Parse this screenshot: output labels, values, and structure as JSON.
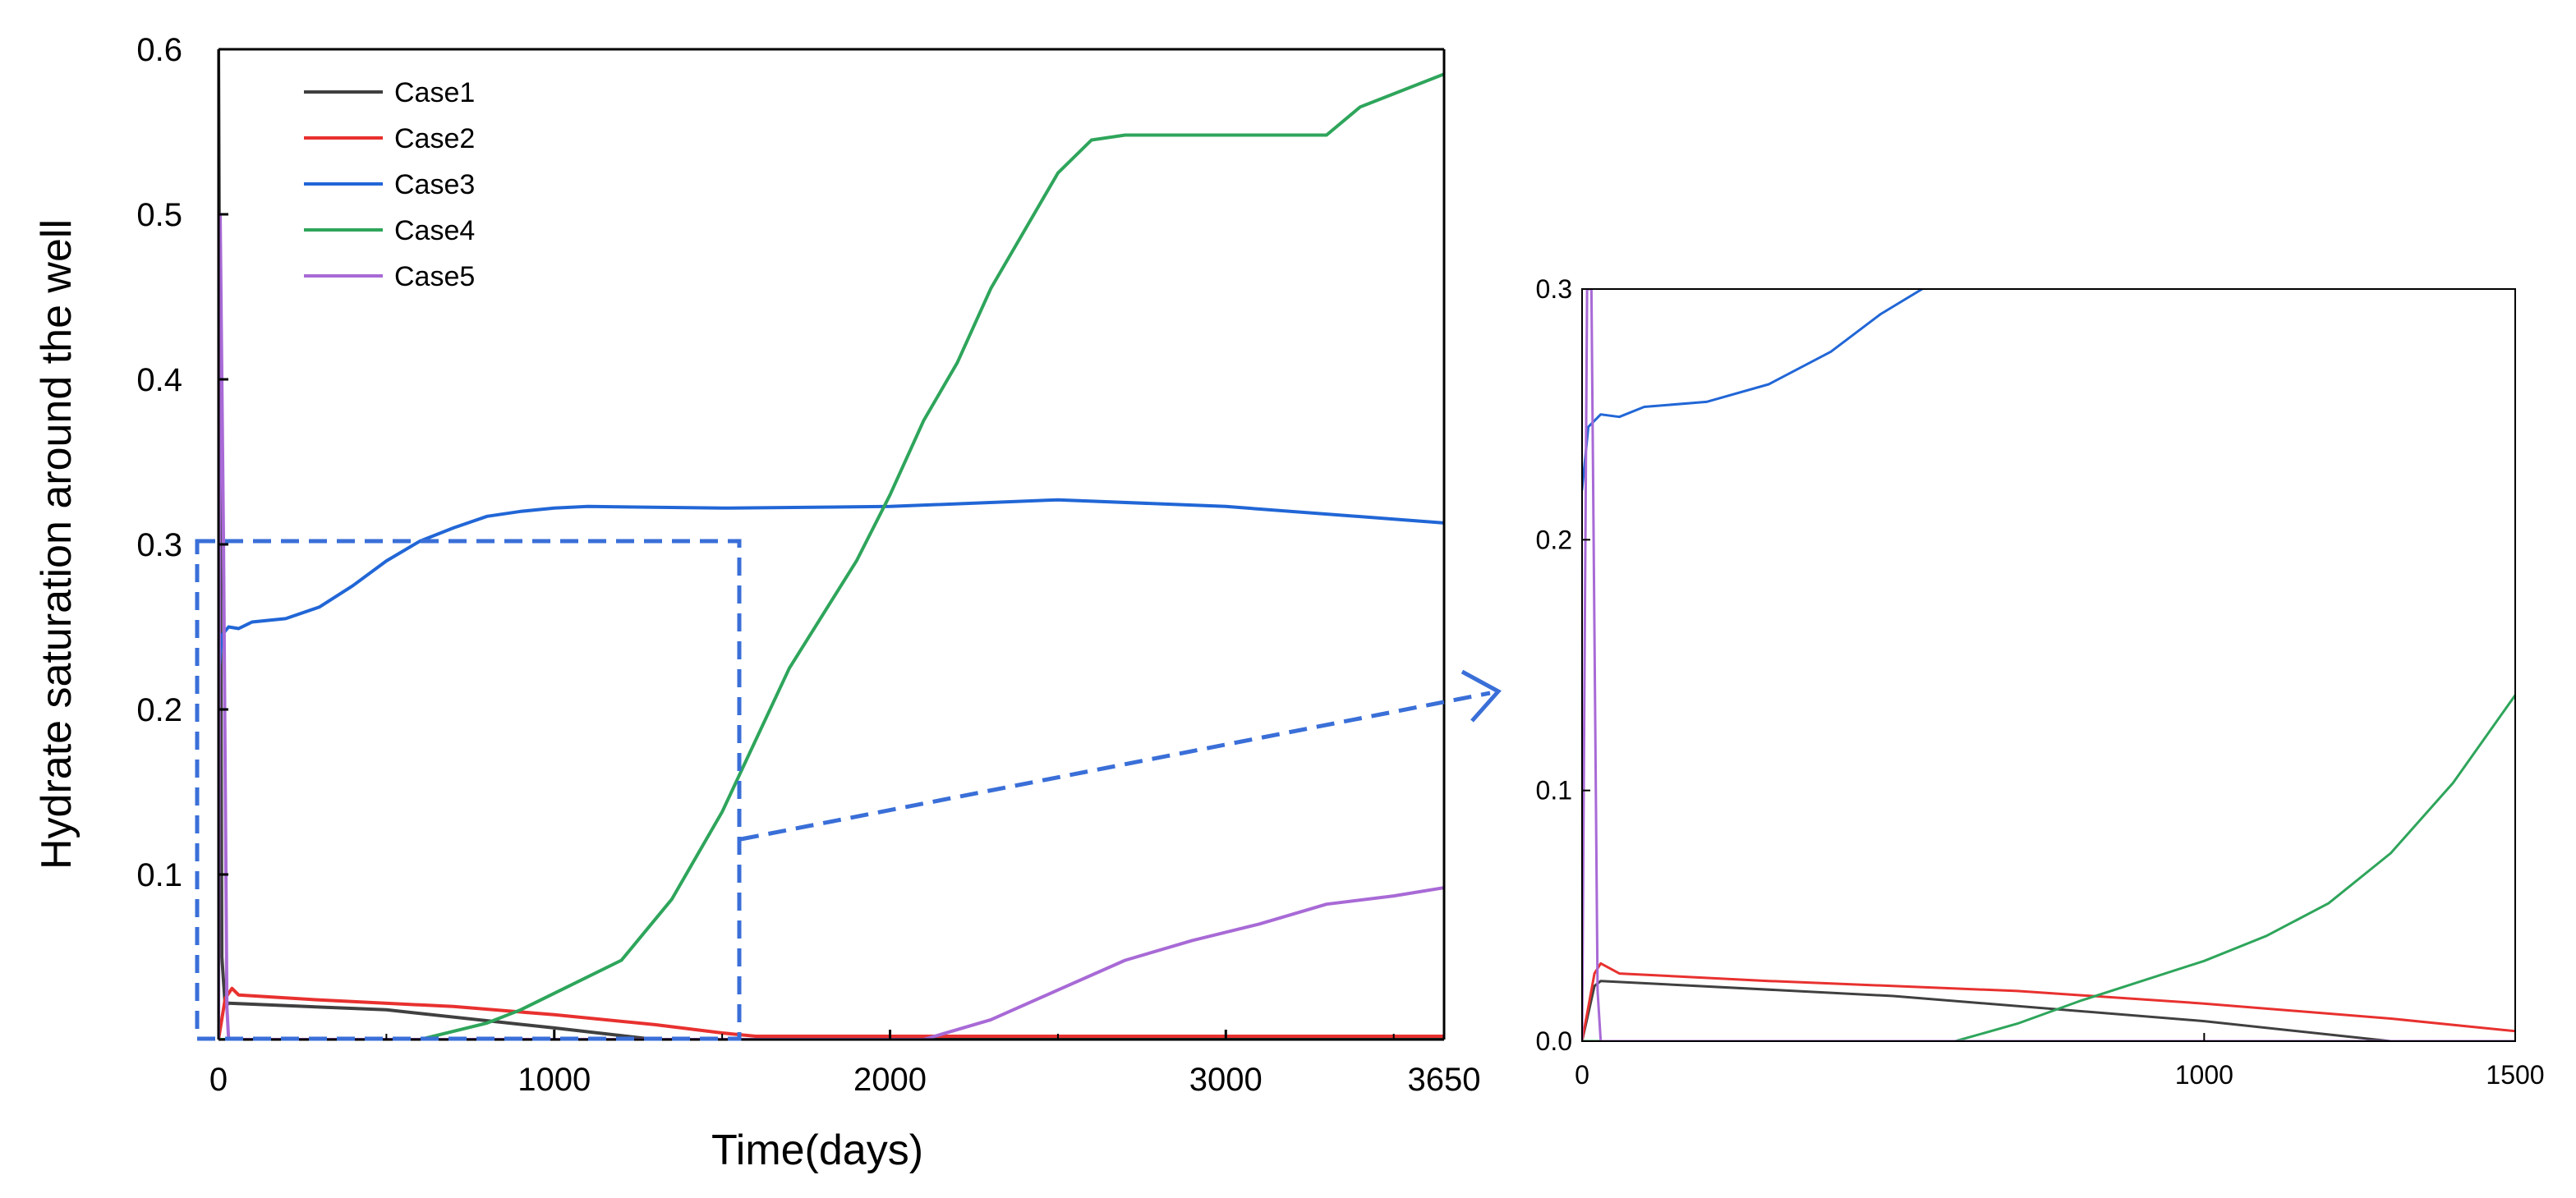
{
  "chart_data": [
    {
      "type": "line",
      "xlabel": "Time(days)",
      "ylabel": "Hydrate saturation around the well",
      "xlim": [
        0,
        3650
      ],
      "ylim": [
        0,
        0.6
      ],
      "x_ticks": [
        "0",
        "1000",
        "2000",
        "3000",
        "3650"
      ],
      "y_ticks": [
        "0.1",
        "0.2",
        "0.3",
        "0.4",
        "0.5",
        "0.6"
      ],
      "legend_position": "top-left",
      "series": [
        {
          "name": "Case1",
          "color": "#404040",
          "x": [
            0,
            5,
            10,
            20,
            30,
            500,
            1000,
            1300,
            3650
          ],
          "y": [
            0.6,
            0.35,
            0.05,
            0.02,
            0.022,
            0.018,
            0.007,
            0.0,
            0.0
          ]
        },
        {
          "name": "Case2",
          "color": "#e8312f",
          "x": [
            0,
            20,
            40,
            60,
            300,
            700,
            1000,
            1300,
            1500,
            1600,
            3650
          ],
          "y": [
            0.0,
            0.025,
            0.031,
            0.027,
            0.024,
            0.02,
            0.015,
            0.009,
            0.004,
            0.002,
            0.002
          ]
        },
        {
          "name": "Case3",
          "color": "#2166d6",
          "x": [
            0,
            10,
            30,
            60,
            100,
            200,
            300,
            400,
            500,
            600,
            700,
            800,
            900,
            1000,
            1100,
            1500,
            2000,
            2500,
            3000,
            3650
          ],
          "y": [
            0.22,
            0.245,
            0.25,
            0.249,
            0.253,
            0.255,
            0.262,
            0.275,
            0.29,
            0.302,
            0.31,
            0.317,
            0.32,
            0.322,
            0.323,
            0.322,
            0.323,
            0.327,
            0.323,
            0.313
          ]
        },
        {
          "name": "Case4",
          "color": "#2ea55b",
          "x": [
            0,
            600,
            800,
            900,
            1000,
            1200,
            1350,
            1500,
            1700,
            1900,
            2000,
            2100,
            2200,
            2300,
            2400,
            2500,
            2600,
            2700,
            2900,
            3100,
            3300,
            3400,
            3650
          ],
          "y": [
            0.0,
            0.0,
            0.01,
            0.018,
            0.028,
            0.048,
            0.085,
            0.138,
            0.225,
            0.29,
            0.33,
            0.375,
            0.41,
            0.455,
            0.49,
            0.525,
            0.545,
            0.548,
            0.548,
            0.548,
            0.548,
            0.565,
            0.585
          ]
        },
        {
          "name": "Case5",
          "color": "#a86ad6",
          "x": [
            0,
            5,
            15,
            25,
            30,
            2100,
            2300,
            2500,
            2700,
            2900,
            3100,
            3300,
            3500,
            3650
          ],
          "y": [
            0.0,
            0.5,
            0.3,
            0.02,
            0.0,
            0.0,
            0.012,
            0.03,
            0.048,
            0.06,
            0.07,
            0.082,
            0.087,
            0.092
          ]
        }
      ]
    },
    {
      "type": "line",
      "xlim": [
        0,
        1500
      ],
      "ylim": [
        0,
        0.3
      ],
      "x_ticks": [
        "0",
        "1000",
        "1500"
      ],
      "y_ticks": [
        "0.0",
        "0.1",
        "0.2",
        "0.3"
      ],
      "series": [
        {
          "name": "Case1",
          "color": "#404040",
          "x": [
            0,
            20,
            30,
            500,
            1000,
            1300,
            1500
          ],
          "y": [
            0.0,
            0.022,
            0.024,
            0.018,
            0.008,
            0.0,
            0.0
          ]
        },
        {
          "name": "Case2",
          "color": "#e8312f",
          "x": [
            0,
            20,
            30,
            60,
            300,
            700,
            1000,
            1300,
            1500
          ],
          "y": [
            0.0,
            0.027,
            0.031,
            0.027,
            0.024,
            0.02,
            0.015,
            0.009,
            0.004
          ]
        },
        {
          "name": "Case3",
          "color": "#2166d6",
          "x": [
            0,
            10,
            30,
            60,
            100,
            200,
            300,
            400,
            480,
            560
          ],
          "y": [
            0.22,
            0.245,
            0.25,
            0.249,
            0.253,
            0.255,
            0.262,
            0.275,
            0.29,
            0.302
          ]
        },
        {
          "name": "Case4",
          "color": "#2ea55b",
          "x": [
            0,
            600,
            700,
            800,
            900,
            1000,
            1100,
            1200,
            1300,
            1400,
            1500
          ],
          "y": [
            0.0,
            0.0,
            0.007,
            0.016,
            0.024,
            0.032,
            0.042,
            0.055,
            0.075,
            0.103,
            0.138
          ]
        },
        {
          "name": "Case5",
          "color": "#a86ad6",
          "x": [
            0,
            8,
            15,
            25,
            30,
            1500
          ],
          "y": [
            0.0,
            0.3,
            0.3,
            0.02,
            0.0,
            0.0
          ]
        }
      ]
    }
  ]
}
